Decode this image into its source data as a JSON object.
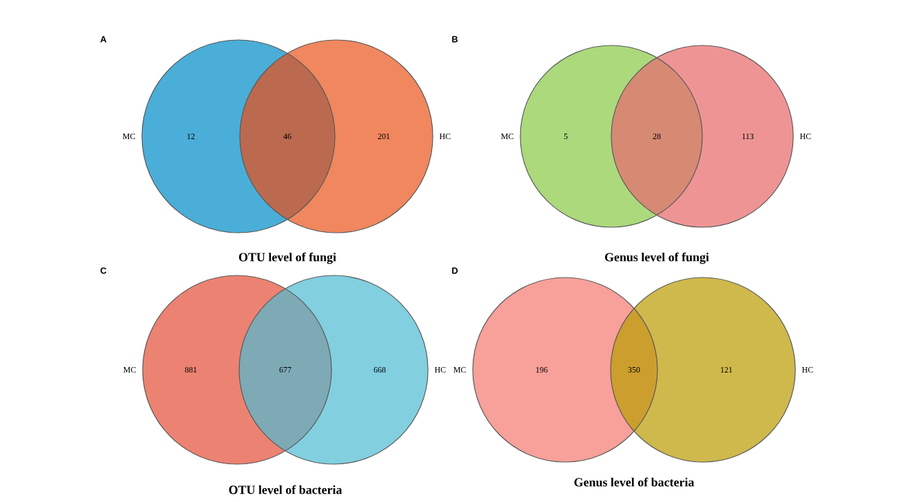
{
  "chart_data": [
    {
      "type": "other",
      "title": "OTU level of fungi",
      "annotations": [
        "A"
      ],
      "categories": [
        "MC",
        null,
        "HC"
      ],
      "values": [
        12,
        46,
        201
      ],
      "data_labels": true,
      "colors": [
        "#4aaed8",
        "#bb6a50",
        "#f0875e"
      ]
    },
    {
      "type": "other",
      "title": "Genus level of fungi",
      "annotations": [
        "B"
      ],
      "categories": [
        "MC",
        null,
        "HC"
      ],
      "values": [
        5,
        28,
        113
      ],
      "data_labels": true,
      "colors": [
        "#acd97c",
        "#d68a74",
        "#ef9494"
      ]
    },
    {
      "type": "other",
      "title": "OTU level of bacteria",
      "annotations": [
        "C"
      ],
      "categories": [
        "MC",
        null,
        "HC"
      ],
      "values": [
        881,
        677,
        668
      ],
      "data_labels": true,
      "colors": [
        "#ec8272",
        "#7eaab5",
        "#82cfe0"
      ]
    },
    {
      "type": "other",
      "title": "Genus level of bacteria",
      "annotations": [
        "D"
      ],
      "categories": [
        "MC",
        null,
        "HC"
      ],
      "values": [
        196,
        350,
        121
      ],
      "data_labels": true,
      "colors": [
        "#f8a09a",
        "#cc9e2e",
        "#cfb94d"
      ]
    }
  ]
}
